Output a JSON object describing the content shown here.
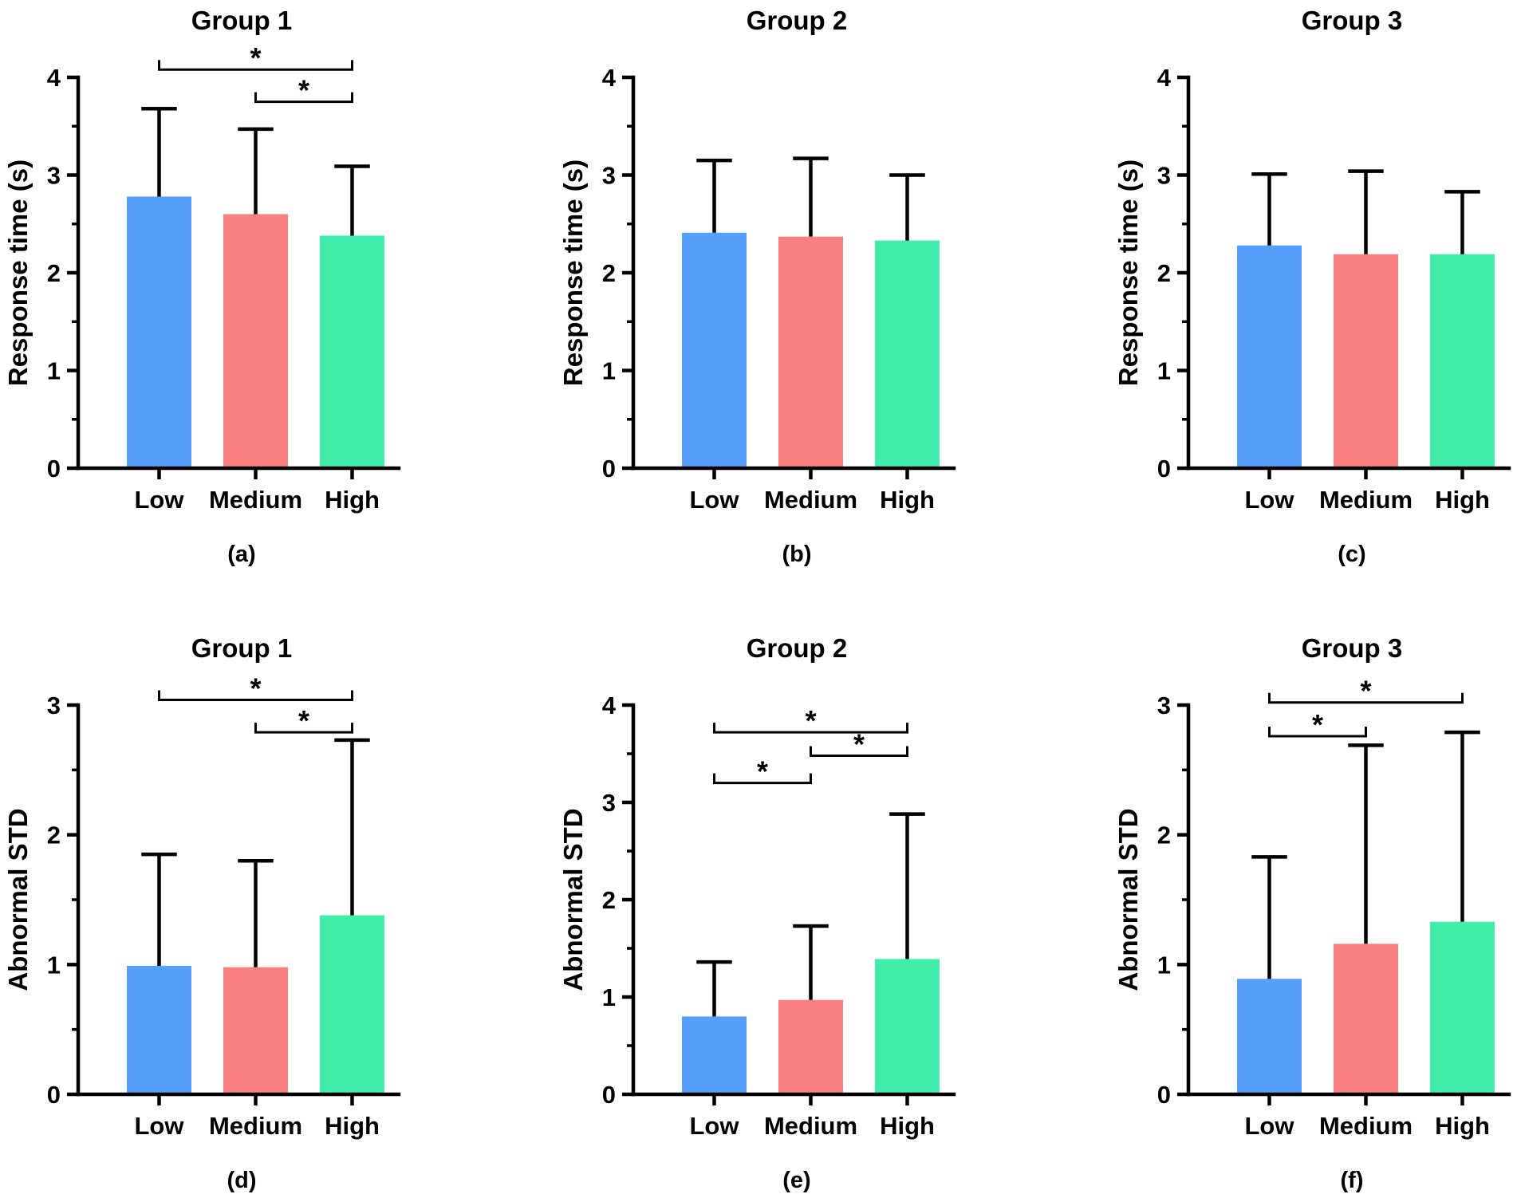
{
  "chart_data": [
    {
      "panel": "(a)",
      "type": "bar",
      "title": "Group 1",
      "ylabel": "Response time (s)",
      "categories": [
        "Low",
        "Medium",
        "High"
      ],
      "values": [
        2.78,
        2.6,
        2.38
      ],
      "errors": [
        0.9,
        0.87,
        0.71
      ],
      "ylim": [
        0,
        4
      ],
      "yticks": [
        "0",
        "1",
        "2",
        "3",
        "4"
      ],
      "colors": [
        "#56a0fb",
        "#fa8080",
        "#40edaa"
      ],
      "significance": [
        {
          "from": 0,
          "to": 2,
          "y": 4.08,
          "label": "*"
        },
        {
          "from": 1,
          "to": 2,
          "y": 3.75,
          "label": "*"
        }
      ]
    },
    {
      "panel": "(b)",
      "type": "bar",
      "title": "Group 2",
      "ylabel": "Response time (s)",
      "categories": [
        "Low",
        "Medium",
        "High"
      ],
      "values": [
        2.41,
        2.37,
        2.33
      ],
      "errors": [
        0.74,
        0.8,
        0.67
      ],
      "ylim": [
        0,
        4
      ],
      "yticks": [
        "0",
        "1",
        "2",
        "3",
        "4"
      ],
      "colors": [
        "#56a0fb",
        "#fa8080",
        "#40edaa"
      ],
      "significance": []
    },
    {
      "panel": "(c)",
      "type": "bar",
      "title": "Group 3",
      "ylabel": "Response time (s)",
      "categories": [
        "Low",
        "Medium",
        "High"
      ],
      "values": [
        2.28,
        2.19,
        2.19
      ],
      "errors": [
        0.73,
        0.85,
        0.64
      ],
      "ylim": [
        0,
        4
      ],
      "yticks": [
        "0",
        "1",
        "2",
        "3",
        "4"
      ],
      "colors": [
        "#56a0fb",
        "#fa8080",
        "#40edaa"
      ],
      "significance": []
    },
    {
      "panel": "(d)",
      "type": "bar",
      "title": "Group 1",
      "ylabel": "Abnormal STD",
      "categories": [
        "Low",
        "Medium",
        "High"
      ],
      "values": [
        0.99,
        0.98,
        1.38
      ],
      "errors": [
        0.86,
        0.82,
        1.35
      ],
      "ylim": [
        0,
        3
      ],
      "yticks": [
        "0",
        "1",
        "2",
        "3"
      ],
      "colors": [
        "#56a0fb",
        "#fa8080",
        "#40edaa"
      ],
      "significance": [
        {
          "from": 0,
          "to": 2,
          "y": 3.04,
          "label": "*"
        },
        {
          "from": 1,
          "to": 2,
          "y": 2.79,
          "label": "*"
        }
      ]
    },
    {
      "panel": "(e)",
      "type": "bar",
      "title": "Group 2",
      "ylabel": "Abnormal STD",
      "categories": [
        "Low",
        "Medium",
        "High"
      ],
      "values": [
        0.8,
        0.97,
        1.39
      ],
      "errors": [
        0.56,
        0.76,
        1.49
      ],
      "ylim": [
        0,
        4
      ],
      "yticks": [
        "0",
        "1",
        "2",
        "3",
        "4"
      ],
      "colors": [
        "#56a0fb",
        "#fa8080",
        "#40edaa"
      ],
      "significance": [
        {
          "from": 0,
          "to": 2,
          "y": 3.72,
          "label": "*"
        },
        {
          "from": 1,
          "to": 2,
          "y": 3.48,
          "label": "*"
        },
        {
          "from": 0,
          "to": 1,
          "y": 3.2,
          "label": "*"
        }
      ]
    },
    {
      "panel": "(f)",
      "type": "bar",
      "title": "Group 3",
      "ylabel": "Abnormal STD",
      "categories": [
        "Low",
        "Medium",
        "High"
      ],
      "values": [
        0.89,
        1.16,
        1.33
      ],
      "errors": [
        0.94,
        1.53,
        1.46
      ],
      "ylim": [
        0,
        3
      ],
      "yticks": [
        "0",
        "1",
        "2",
        "3"
      ],
      "colors": [
        "#56a0fb",
        "#fa8080",
        "#40edaa"
      ],
      "significance": [
        {
          "from": 0,
          "to": 2,
          "y": 3.02,
          "label": "*"
        },
        {
          "from": 0,
          "to": 1,
          "y": 2.76,
          "label": "*"
        }
      ]
    }
  ]
}
